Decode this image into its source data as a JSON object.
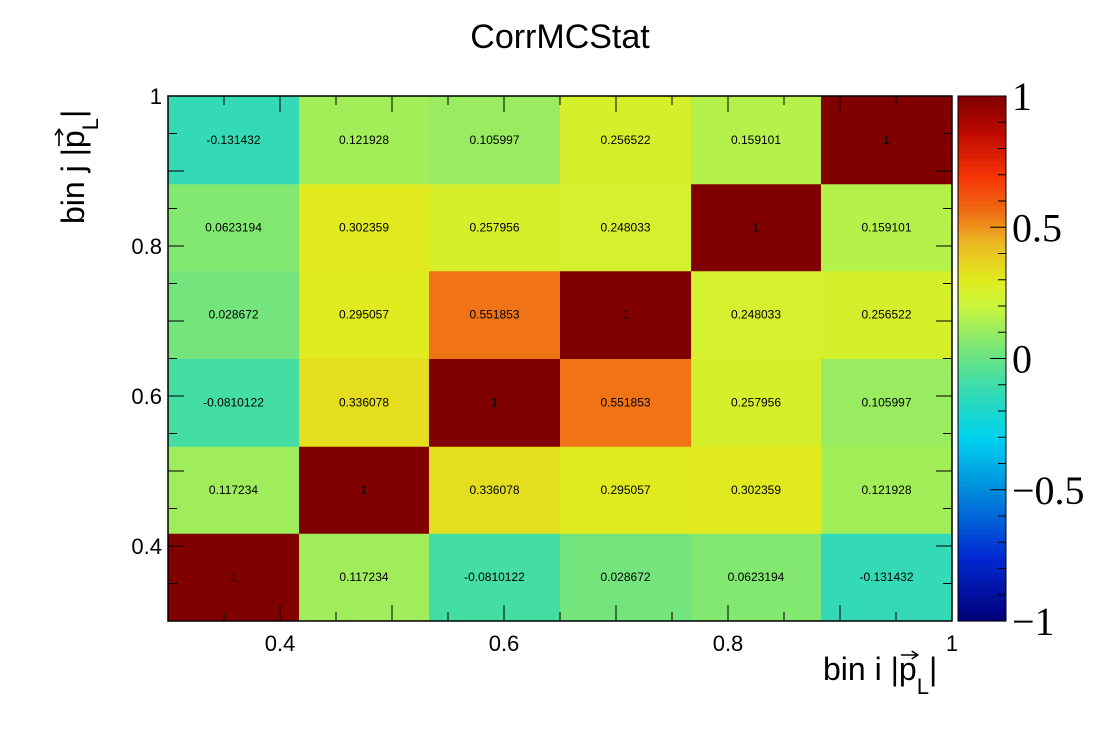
{
  "chart_data": {
    "type": "heatmap",
    "title": "CorrMCStat",
    "xlabel": {
      "main": "bin i |",
      "vec": "p",
      "sub": "L",
      "end": "|"
    },
    "ylabel": {
      "main": "bin j |",
      "vec": "p",
      "sub": "L",
      "end": "|"
    },
    "xlim": [
      0.3,
      1.0
    ],
    "ylim": [
      0.3,
      1.0
    ],
    "x_edges": [
      0.3,
      0.417,
      0.533,
      0.65,
      0.767,
      0.883,
      1.0
    ],
    "y_edges": [
      0.3,
      0.417,
      0.533,
      0.65,
      0.767,
      0.883,
      1.0
    ],
    "x_ticks": [
      {
        "value": 0.4,
        "label": "0.4"
      },
      {
        "value": 0.6,
        "label": "0.6"
      },
      {
        "value": 0.8,
        "label": "0.8"
      },
      {
        "value": 1.0,
        "label": "1"
      }
    ],
    "y_ticks": [
      {
        "value": 0.4,
        "label": "0.4"
      },
      {
        "value": 0.6,
        "label": "0.6"
      },
      {
        "value": 0.8,
        "label": "0.8"
      },
      {
        "value": 1.0,
        "label": "1"
      }
    ],
    "z_range": [
      -1,
      1
    ],
    "z_ticks": [
      {
        "value": 1,
        "label": "1"
      },
      {
        "value": 0.5,
        "label": "0.5"
      },
      {
        "value": 0,
        "label": "0"
      },
      {
        "value": -0.5,
        "label": "−0.5"
      },
      {
        "value": -1,
        "label": "−1"
      }
    ],
    "values": [
      [
        1,
        0.117234,
        -0.0810122,
        0.028672,
        0.0623194,
        -0.131432
      ],
      [
        0.117234,
        1,
        0.336078,
        0.295057,
        0.302359,
        0.121928
      ],
      [
        -0.0810122,
        0.336078,
        1,
        0.551853,
        0.257956,
        0.105997
      ],
      [
        0.028672,
        0.295057,
        0.551853,
        1,
        0.248033,
        0.256522
      ],
      [
        0.0623194,
        0.302359,
        0.257956,
        0.248033,
        1,
        0.159101
      ],
      [
        -0.131432,
        0.121928,
        0.105997,
        0.256522,
        0.159101,
        1
      ]
    ],
    "grid": false,
    "colorbar": "right"
  }
}
